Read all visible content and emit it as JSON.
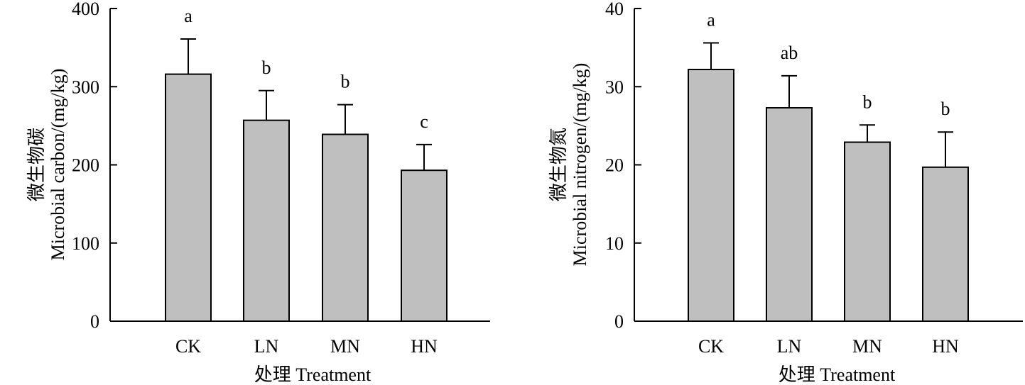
{
  "colors": {
    "bar_fill": "#bfbfbf",
    "stroke": "#000000"
  },
  "chart_data": [
    {
      "type": "bar",
      "categories": [
        "CK",
        "LN",
        "MN",
        "HN"
      ],
      "values": [
        316,
        257,
        239,
        193
      ],
      "errors": [
        45,
        38,
        38,
        33
      ],
      "significance": [
        "a",
        "b",
        "b",
        "c"
      ],
      "ylim": [
        0,
        400
      ],
      "yticks": [
        "0",
        "100",
        "200",
        "300",
        "400"
      ],
      "ylabel_cn": "微生物碳",
      "ylabel": "Microbial carbon/(mg/kg)",
      "xlabel": "处理 Treatment",
      "grid": false
    },
    {
      "type": "bar",
      "categories": [
        "CK",
        "LN",
        "MN",
        "HN"
      ],
      "values": [
        32.2,
        27.3,
        22.9,
        19.7
      ],
      "errors": [
        3.4,
        4.1,
        2.2,
        4.5
      ],
      "significance": [
        "a",
        "ab",
        "b",
        "b"
      ],
      "ylim": [
        0,
        40
      ],
      "yticks": [
        "0",
        "10",
        "20",
        "30",
        "40"
      ],
      "ylabel_cn": "微生物氮",
      "ylabel": "Microbial nitrogen/(mg/kg)",
      "xlabel": "处理 Treatment",
      "grid": false
    }
  ]
}
